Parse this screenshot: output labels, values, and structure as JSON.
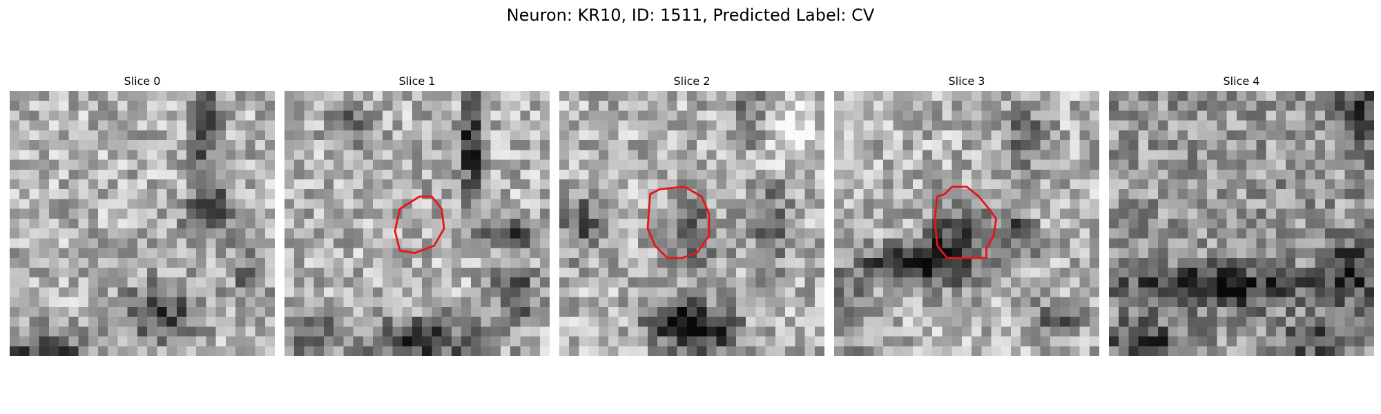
{
  "figure": {
    "title": "Neuron: KR10, ID: 1511, Predicted Label: CV"
  },
  "panels": [
    {
      "title": "Slice 0",
      "has_roi_outline": false,
      "seed": 11,
      "dark_features": "right-ridge-and-bottom"
    },
    {
      "title": "Slice 1",
      "has_roi_outline": true,
      "seed": 23,
      "dark_features": "right-ridge-and-bottom-arch"
    },
    {
      "title": "Slice 2",
      "has_roi_outline": true,
      "seed": 37,
      "dark_features": "central-blob-and-bottom-rings"
    },
    {
      "title": "Slice 3",
      "has_roi_outline": true,
      "seed": 51,
      "dark_features": "dark-band-across-middle"
    },
    {
      "title": "Slice 4",
      "has_roi_outline": false,
      "seed": 67,
      "dark_features": "wide-dark-band"
    }
  ],
  "image": {
    "colormap": "grayscale",
    "grid": "27x27 pixel tiles"
  },
  "colors": {
    "roi_outline": "#e8141b",
    "background": "#ffffff"
  }
}
